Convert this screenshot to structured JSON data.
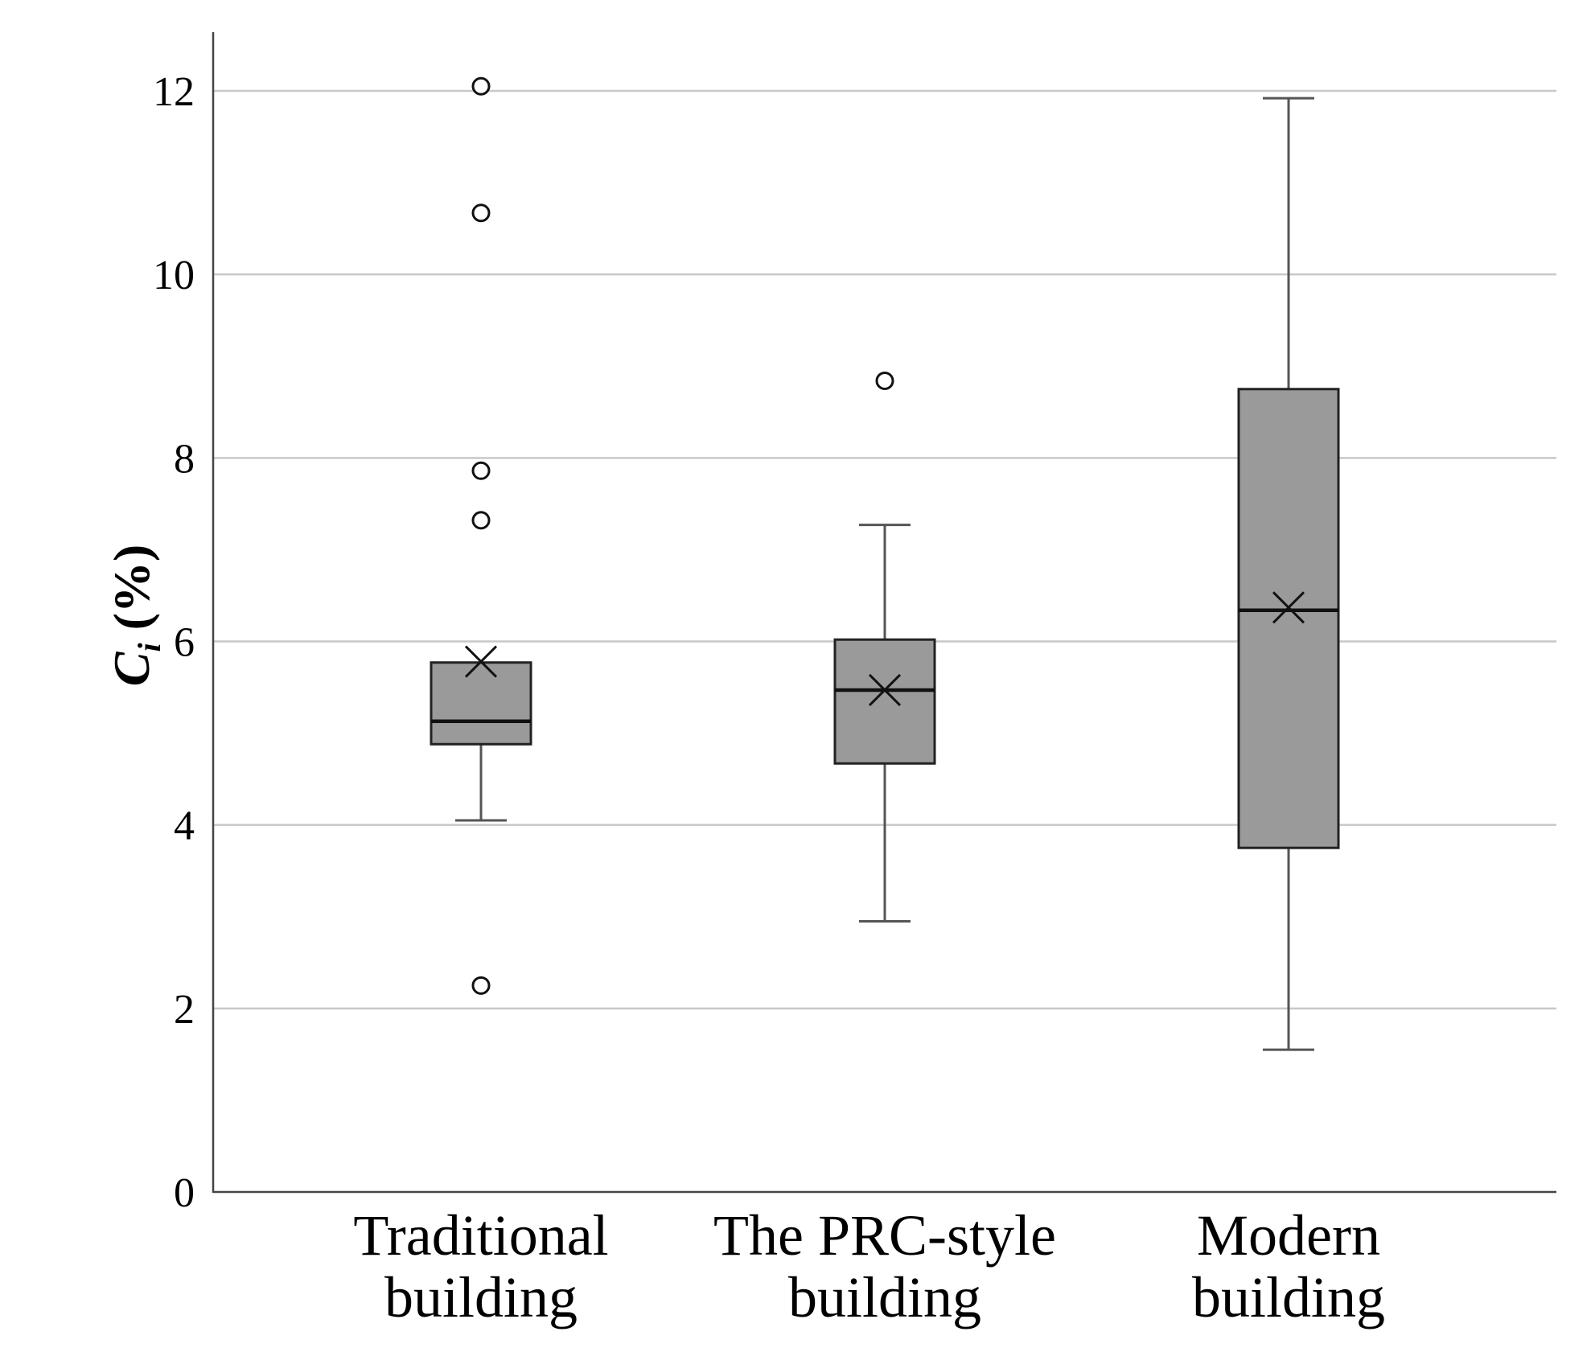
{
  "chart_data": {
    "type": "box",
    "ylabel": {
      "symbol": "C",
      "subscript": "i",
      "unit": "(%)"
    },
    "ylim": [
      0,
      12.6
    ],
    "yticks": [
      "0",
      "2",
      "4",
      "6",
      "8",
      "10",
      "12"
    ],
    "grid": true,
    "categories": [
      {
        "line1": "Traditional",
        "line2": "building"
      },
      {
        "line1": "The PRC-style",
        "line2": "building"
      },
      {
        "line1": "Modern",
        "line2": "building"
      }
    ],
    "boxes": [
      {
        "whisker_low": 4.05,
        "q1": 4.88,
        "median": 5.13,
        "q3": 5.77,
        "whisker_high": 5.77,
        "mean": 5.78,
        "outliers": [
          12.05,
          10.67,
          7.86,
          7.32,
          2.25
        ]
      },
      {
        "whisker_low": 2.95,
        "q1": 4.67,
        "median": 5.47,
        "q3": 6.02,
        "whisker_high": 7.27,
        "mean": 5.47,
        "outliers": [
          8.84
        ]
      },
      {
        "whisker_low": 1.55,
        "q1": 3.75,
        "median": 6.34,
        "q3": 8.75,
        "whisker_high": 11.92,
        "mean": 6.37,
        "outliers": []
      }
    ],
    "colors": {
      "box_fill": "#9a9a9a",
      "grid": "#c8c8c8",
      "stroke": "#222222"
    }
  }
}
